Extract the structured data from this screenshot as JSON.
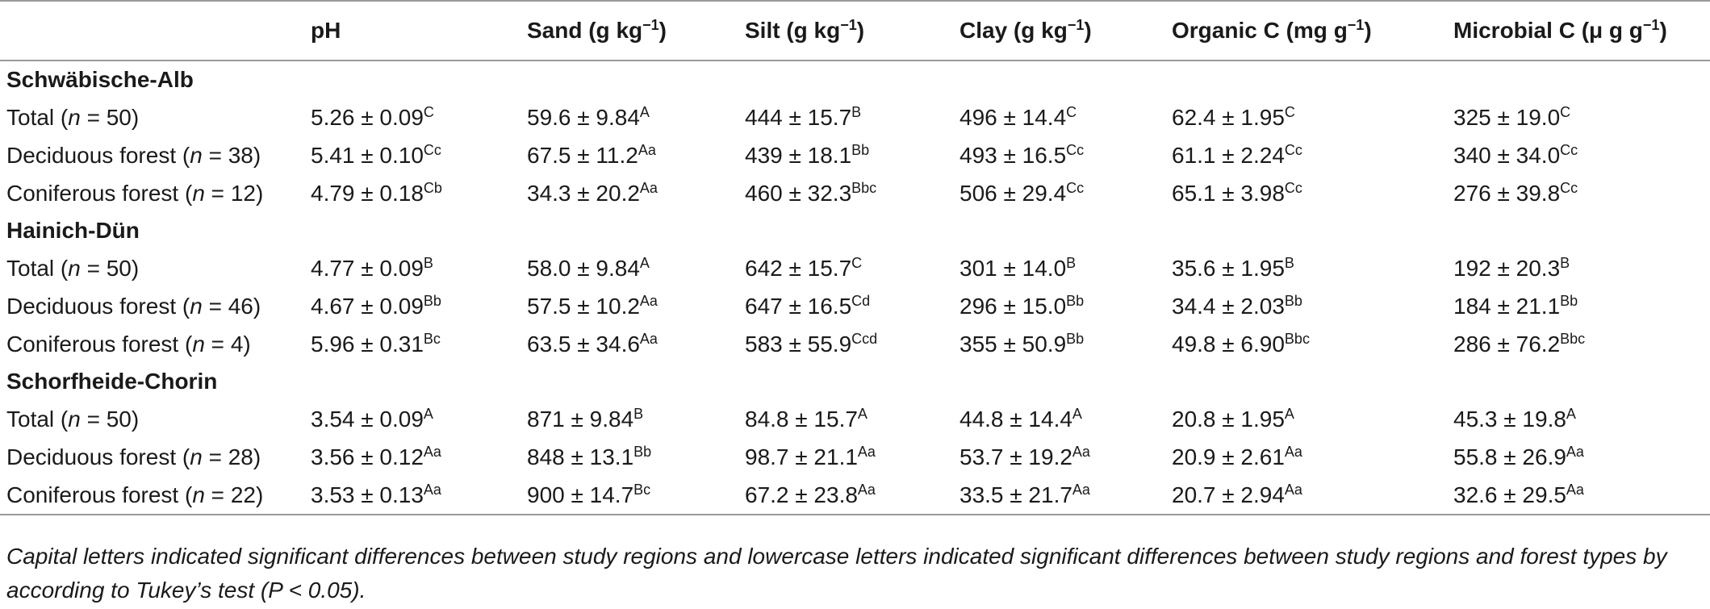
{
  "columns": [
    {
      "text": "",
      "sup": "",
      "close": ""
    },
    {
      "text": "pH",
      "sup": "",
      "close": ""
    },
    {
      "text": "Sand (g kg",
      "sup": "−1",
      "close": ")"
    },
    {
      "text": "Silt (g kg",
      "sup": "−1",
      "close": ")"
    },
    {
      "text": "Clay (g kg",
      "sup": "−1",
      "close": ")"
    },
    {
      "text": "Organic C (mg g",
      "sup": "−1",
      "close": ")"
    },
    {
      "text": "Microbial C (μ g g",
      "sup": "−1",
      "close": ")"
    }
  ],
  "groups": [
    {
      "name": "Schwäbische-Alb",
      "rows": [
        {
          "label": "Total (",
          "n": "n",
          "label_rest": " = 50)",
          "cells": [
            {
              "v": "5.26 ± 0.09",
              "s": "C"
            },
            {
              "v": "59.6 ± 9.84",
              "s": "A"
            },
            {
              "v": "444 ± 15.7",
              "s": "B"
            },
            {
              "v": "496 ± 14.4",
              "s": "C"
            },
            {
              "v": "62.4 ± 1.95",
              "s": "C"
            },
            {
              "v": "325 ± 19.0",
              "s": "C"
            }
          ]
        },
        {
          "label": "Deciduous forest (",
          "n": "n",
          "label_rest": " = 38)",
          "cells": [
            {
              "v": "5.41 ± 0.10",
              "s": "Cc"
            },
            {
              "v": "67.5 ± 11.2",
              "s": "Aa"
            },
            {
              "v": "439 ± 18.1",
              "s": "Bb"
            },
            {
              "v": "493 ± 16.5",
              "s": "Cc"
            },
            {
              "v": "61.1 ± 2.24",
              "s": "Cc"
            },
            {
              "v": "340 ± 34.0",
              "s": "Cc"
            }
          ]
        },
        {
          "label": "Coniferous forest (",
          "n": "n",
          "label_rest": " = 12)",
          "cells": [
            {
              "v": "4.79 ± 0.18",
              "s": "Cb"
            },
            {
              "v": "34.3 ± 20.2",
              "s": "Aa"
            },
            {
              "v": "460 ± 32.3",
              "s": "Bbc"
            },
            {
              "v": "506 ± 29.4",
              "s": "Cc"
            },
            {
              "v": "65.1 ± 3.98",
              "s": "Cc"
            },
            {
              "v": "276 ± 39.8",
              "s": "Cc"
            }
          ]
        }
      ]
    },
    {
      "name": "Hainich-Dün",
      "rows": [
        {
          "label": "Total (",
          "n": "n",
          "label_rest": " = 50)",
          "cells": [
            {
              "v": "4.77 ± 0.09",
              "s": "B"
            },
            {
              "v": "58.0 ± 9.84",
              "s": "A"
            },
            {
              "v": "642 ± 15.7",
              "s": "C"
            },
            {
              "v": "301 ± 14.0",
              "s": "B"
            },
            {
              "v": "35.6 ± 1.95",
              "s": "B"
            },
            {
              "v": "192 ± 20.3",
              "s": "B"
            }
          ]
        },
        {
          "label": "Deciduous forest (",
          "n": "n",
          "label_rest": " = 46)",
          "cells": [
            {
              "v": "4.67 ± 0.09",
              "s": "Bb"
            },
            {
              "v": "57.5 ± 10.2",
              "s": "Aa"
            },
            {
              "v": "647 ±  16.5",
              "s": "Cd"
            },
            {
              "v": "296 ± 15.0",
              "s": "Bb"
            },
            {
              "v": "34.4 ± 2.03",
              "s": "Bb"
            },
            {
              "v": "184 ± 21.1",
              "s": "Bb"
            }
          ]
        },
        {
          "label": "Coniferous forest (",
          "n": "n",
          "label_rest": " = 4)",
          "cells": [
            {
              "v": "5.96 ± 0.31",
              "s": "Bc"
            },
            {
              "v": "63.5 ± 34.6",
              "s": "Aa"
            },
            {
              "v": "583 ± 55.9",
              "s": "Ccd"
            },
            {
              "v": "355 ± 50.9",
              "s": "Bb"
            },
            {
              "v": "49.8 ± 6.90",
              "s": "Bbc"
            },
            {
              "v": "286 ± 76.2",
              "s": "Bbc"
            }
          ]
        }
      ]
    },
    {
      "name": "Schorfheide-Chorin",
      "rows": [
        {
          "label": "Total (",
          "n": "n",
          "label_rest": " = 50)",
          "cells": [
            {
              "v": "3.54 ± 0.09",
              "s": "A"
            },
            {
              "v": "871 ± 9.84",
              "s": "B"
            },
            {
              "v": "84.8 ± 15.7",
              "s": "A"
            },
            {
              "v": "44.8 ± 14.4",
              "s": "A"
            },
            {
              "v": "20.8 ± 1.95",
              "s": "A"
            },
            {
              "v": "45.3 ± 19.8",
              "s": "A"
            }
          ]
        },
        {
          "label": "Deciduous forest (",
          "n": "n",
          "label_rest": " = 28)",
          "cells": [
            {
              "v": "3.56 ± 0.12",
              "s": "Aa"
            },
            {
              "v": "848 ± 13.1",
              "s": "Bb"
            },
            {
              "v": "98.7 ± 21.1",
              "s": "Aa"
            },
            {
              "v": "53.7 ± 19.2",
              "s": "Aa"
            },
            {
              "v": "20.9 ± 2.61",
              "s": "Aa"
            },
            {
              "v": "55.8 ± 26.9",
              "s": "Aa"
            }
          ]
        },
        {
          "label": "Coniferous forest (",
          "n": "n",
          "label_rest": " = 22)",
          "cells": [
            {
              "v": "3.53 ± 0.13",
              "s": "Aa"
            },
            {
              "v": "900 ± 14.7",
              "s": "Bc"
            },
            {
              "v": "67.2 ± 23.8",
              "s": "Aa"
            },
            {
              "v": "33.5 ± 21.7",
              "s": "Aa"
            },
            {
              "v": "20.7 ± 2.94",
              "s": "Aa"
            },
            {
              "v": "32.6 ± 29.5",
              "s": "Aa"
            }
          ]
        }
      ]
    }
  ],
  "footnote": "Capital letters indicated significant differences between study regions and lowercase letters indicated significant differences between study regions and forest types by according to Tukey’s test (P < 0.05)."
}
